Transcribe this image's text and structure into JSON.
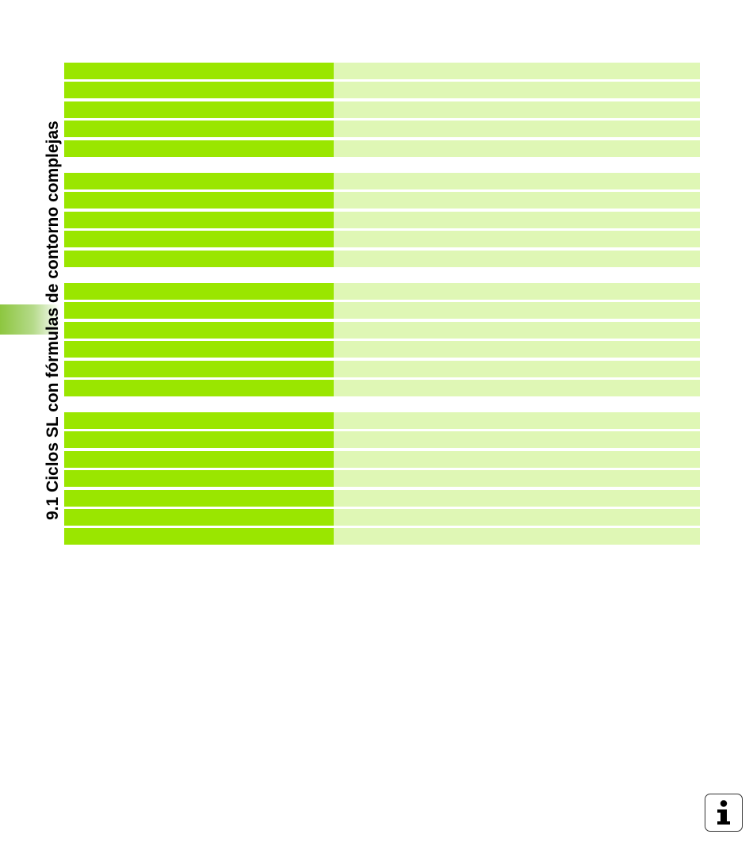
{
  "page": {
    "section_title": "9.1 Ciclos SL con fórmulas de contorno complejas"
  },
  "tables": [
    {
      "rows": [
        {
          "left": "",
          "right": ""
        },
        {
          "left": "",
          "right": ""
        },
        {
          "left": "",
          "right": ""
        },
        {
          "left": "",
          "right": ""
        },
        {
          "left": "",
          "right": ""
        }
      ]
    },
    {
      "rows": [
        {
          "left": "",
          "right": ""
        },
        {
          "left": "",
          "right": ""
        },
        {
          "left": "",
          "right": ""
        },
        {
          "left": "",
          "right": ""
        },
        {
          "left": "",
          "right": ""
        }
      ]
    },
    {
      "rows": [
        {
          "left": "",
          "right": ""
        },
        {
          "left": "",
          "right": ""
        },
        {
          "left": "",
          "right": ""
        },
        {
          "left": "",
          "right": ""
        },
        {
          "left": "",
          "right": ""
        },
        {
          "left": "",
          "right": ""
        }
      ]
    },
    {
      "rows": [
        {
          "left": "",
          "right": ""
        },
        {
          "left": "",
          "right": ""
        },
        {
          "left": "",
          "right": ""
        },
        {
          "left": "",
          "right": ""
        },
        {
          "left": "",
          "right": ""
        },
        {
          "left": "",
          "right": ""
        },
        {
          "left": "",
          "right": ""
        }
      ]
    }
  ],
  "icons": {
    "info": "info-icon"
  },
  "colors": {
    "left_cell": "#9ae600",
    "right_cell": "#dff7b5",
    "tab": "#8dc63f"
  }
}
